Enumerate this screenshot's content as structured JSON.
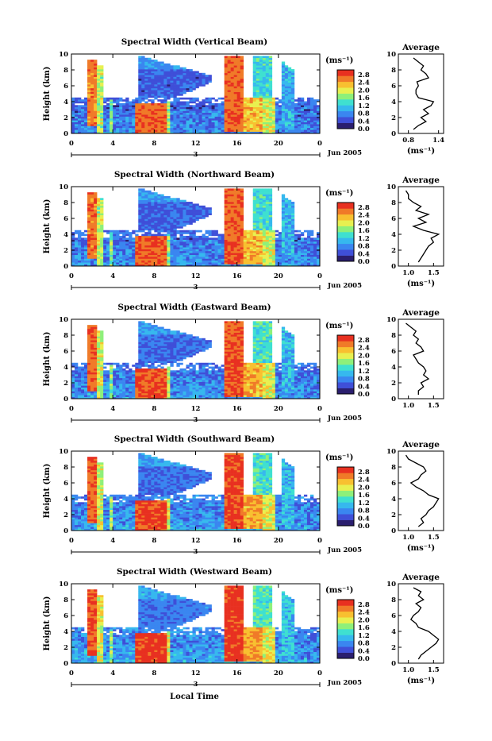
{
  "chart_data": {
    "type": "heatmap",
    "x_axis": {
      "label": "Local Time",
      "ticks": [
        "0",
        "4",
        "8",
        "12",
        "16",
        "20",
        "0"
      ],
      "date_label": "3",
      "month_label": "Jun 2005"
    },
    "colorbar": {
      "unit": "(ms⁻¹)",
      "ticks": [
        "2.8",
        "2.4",
        "2.0",
        "1.6",
        "1.2",
        "0.8",
        "0.4",
        "0.0"
      ],
      "colors": [
        "#2a1e6e",
        "#3f4fd8",
        "#3a86f0",
        "#36b8ee",
        "#3fe0d0",
        "#8ef07a",
        "#e8f050",
        "#f8c030",
        "#f07a28",
        "#e83020"
      ]
    },
    "panels": [
      {
        "title": "Spectral Width (Vertical Beam)",
        "ylabel": "Height (km)",
        "yticks": [
          "10",
          "8",
          "6",
          "4",
          "2",
          "0"
        ],
        "ylim": [
          0,
          10
        ],
        "xlim": [
          0,
          24
        ],
        "average": {
          "title": "Average",
          "xlabel": "(ms⁻¹)",
          "xticks": [
            "0.8",
            "1.4"
          ],
          "xlim": [
            0.6,
            1.5
          ],
          "ylim": [
            0,
            10
          ],
          "profile": {
            "height_km": [
              0.5,
              1.0,
              1.5,
              2.0,
              2.5,
              3.0,
              3.5,
              4.0,
              4.5,
              5.0,
              5.5,
              6.0,
              6.5,
              7.0,
              7.5,
              8.0,
              8.5,
              9.0,
              9.5
            ],
            "width_ms": [
              0.9,
              1.0,
              1.15,
              1.05,
              1.2,
              1.1,
              1.25,
              1.3,
              1.0,
              0.95,
              0.95,
              1.0,
              0.97,
              1.2,
              1.15,
              1.05,
              1.1,
              1.0,
              0.9
            ]
          }
        }
      },
      {
        "title": "Spectral Width (Northward Beam)",
        "ylabel": "Height (km)",
        "yticks": [
          "10",
          "8",
          "6",
          "4",
          "2",
          "0"
        ],
        "ylim": [
          0,
          10
        ],
        "xlim": [
          0,
          24
        ],
        "average": {
          "title": "Average",
          "xlabel": "(ms⁻¹)",
          "xticks": [
            "1.0",
            "1.5"
          ],
          "xlim": [
            0.8,
            1.7
          ],
          "ylim": [
            0,
            10
          ],
          "profile": {
            "height_km": [
              0.5,
              1.0,
              1.5,
              2.0,
              2.5,
              3.0,
              3.5,
              4.0,
              4.5,
              5.0,
              5.5,
              6.0,
              6.5,
              7.0,
              7.5,
              8.0,
              8.5,
              9.0,
              9.5
            ],
            "width_ms": [
              1.2,
              1.25,
              1.3,
              1.35,
              1.4,
              1.5,
              1.45,
              1.6,
              1.3,
              1.1,
              1.35,
              1.2,
              1.4,
              1.15,
              1.25,
              1.1,
              1.0,
              1.0,
              0.95
            ]
          }
        }
      },
      {
        "title": "Spectral Width (Eastward Beam)",
        "ylabel": "Height (km)",
        "yticks": [
          "10",
          "8",
          "6",
          "4",
          "2",
          "0"
        ],
        "ylim": [
          0,
          10
        ],
        "xlim": [
          0,
          24
        ],
        "average": {
          "title": "Average",
          "xlabel": "",
          "xticks": [
            "1.0",
            "1.5"
          ],
          "xlim": [
            0.8,
            1.7
          ],
          "ylim": [
            0,
            10
          ],
          "profile": {
            "height_km": [
              0.5,
              1.0,
              1.5,
              2.0,
              2.5,
              3.0,
              3.5,
              4.0,
              4.5,
              5.0,
              5.5,
              6.0,
              6.5,
              7.0,
              7.5,
              8.0,
              8.5,
              9.0,
              9.5
            ],
            "width_ms": [
              1.2,
              1.2,
              1.3,
              1.25,
              1.4,
              1.3,
              1.35,
              1.3,
              1.2,
              1.15,
              1.1,
              1.3,
              1.25,
              1.15,
              1.2,
              1.1,
              1.15,
              1.05,
              0.95
            ]
          }
        }
      },
      {
        "title": "Spectral Width (Southward Beam)",
        "ylabel": "Height (km)",
        "yticks": [
          "10",
          "8",
          "6",
          "4",
          "2",
          "0"
        ],
        "ylim": [
          0,
          10
        ],
        "xlim": [
          0,
          24
        ],
        "average": {
          "title": "Average",
          "xlabel": "(ms⁻¹)",
          "xticks": [
            "1.0",
            "1.5"
          ],
          "xlim": [
            0.8,
            1.7
          ],
          "ylim": [
            0,
            10
          ],
          "profile": {
            "height_km": [
              0.5,
              1.0,
              1.5,
              2.0,
              2.5,
              3.0,
              3.5,
              4.0,
              4.5,
              5.0,
              5.5,
              6.0,
              6.5,
              7.0,
              7.5,
              8.0,
              8.5,
              9.0,
              9.5
            ],
            "width_ms": [
              1.2,
              1.3,
              1.25,
              1.35,
              1.4,
              1.5,
              1.55,
              1.6,
              1.4,
              1.3,
              1.15,
              1.05,
              1.2,
              1.25,
              1.35,
              1.3,
              1.15,
              1.0,
              0.95
            ]
          }
        }
      },
      {
        "title": "Spectral Width (Westward Beam)",
        "ylabel": "Height (km)",
        "yticks": [
          "10",
          "8",
          "6",
          "4",
          "2",
          "0"
        ],
        "ylim": [
          0,
          10
        ],
        "xlim": [
          0,
          24
        ],
        "average": {
          "title": "Average",
          "xlabel": "(ms⁻¹)",
          "xticks": [
            "1.0",
            "1.5"
          ],
          "xlim": [
            0.8,
            1.7
          ],
          "ylim": [
            0,
            10
          ],
          "profile": {
            "height_km": [
              0.5,
              1.0,
              1.5,
              2.0,
              2.5,
              3.0,
              3.5,
              4.0,
              4.5,
              5.0,
              5.5,
              6.0,
              6.5,
              7.0,
              7.5,
              8.0,
              8.5,
              9.0,
              9.5
            ],
            "width_ms": [
              1.2,
              1.25,
              1.35,
              1.45,
              1.55,
              1.6,
              1.5,
              1.4,
              1.2,
              1.15,
              1.05,
              1.1,
              1.2,
              1.25,
              1.15,
              1.3,
              1.2,
              1.25,
              1.1
            ]
          }
        }
      }
    ]
  }
}
